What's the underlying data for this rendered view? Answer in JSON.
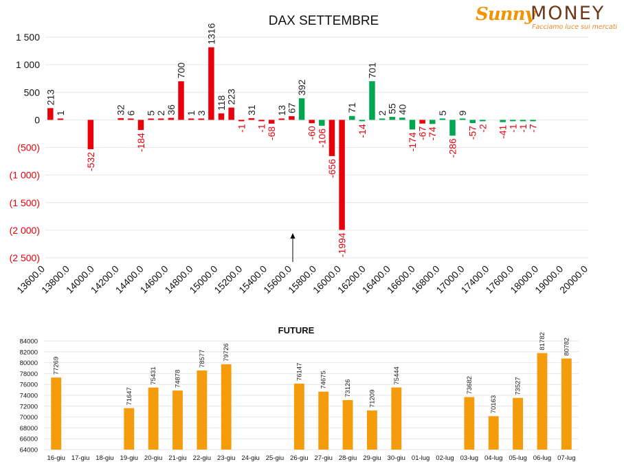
{
  "brand": {
    "logo_name": "Sunny",
    "logo_money": "MONEY",
    "tagline": "Facciamo luce sui mercati"
  },
  "chart_data": [
    {
      "type": "bar",
      "title": "DAX SETTEMBRE",
      "xlabel": "",
      "ylabel": "",
      "ylim": [
        -2500,
        1500
      ],
      "yticks": [
        1500,
        1000,
        500,
        0,
        -500,
        -1000,
        -1500,
        -2000,
        -2500
      ],
      "ytick_labels": [
        "1 500",
        "1 000",
        "500",
        "0",
        "(500)",
        "(1 000)",
        "(1 500)",
        "(2 000)",
        "(2 500)"
      ],
      "xtick_labels": [
        "13600.0",
        "13800.0",
        "14000.0",
        "14200.0",
        "14400.0",
        "14600.0",
        "14800.0",
        "15000.0",
        "15200.0",
        "15400.0",
        "15600.0",
        "15800.0",
        "16000.0",
        "16200.0",
        "16400.0",
        "16600.0",
        "16800.0",
        "17000.0",
        "17400.0",
        "17600.0",
        "18000.0",
        "19000.0",
        "20000.0"
      ],
      "grid": true,
      "bars": [
        {
          "value": 213,
          "color": "#e8000b"
        },
        {
          "value": 1,
          "color": "#e8000b"
        },
        {
          "value": null,
          "color": "#e8000b"
        },
        {
          "value": null,
          "color": "#e8000b"
        },
        {
          "value": -532,
          "color": "#e8000b"
        },
        {
          "value": null,
          "color": "#e8000b"
        },
        {
          "value": null,
          "color": "#e8000b"
        },
        {
          "value": 32,
          "color": "#e8000b"
        },
        {
          "value": 6,
          "color": "#e8000b"
        },
        {
          "value": -184,
          "color": "#e8000b"
        },
        {
          "value": 5,
          "color": "#e8000b"
        },
        {
          "value": 2,
          "color": "#e8000b"
        },
        {
          "value": 36,
          "color": "#e8000b"
        },
        {
          "value": 700,
          "color": "#e8000b"
        },
        {
          "value": 1,
          "color": "#e8000b"
        },
        {
          "value": 3,
          "color": "#e8000b"
        },
        {
          "value": 1316,
          "color": "#e8000b"
        },
        {
          "value": 118,
          "color": "#e8000b"
        },
        {
          "value": 223,
          "color": "#e8000b"
        },
        {
          "value": -1,
          "color": "#e8000b"
        },
        {
          "value": 31,
          "color": "#e8000b"
        },
        {
          "value": -1,
          "color": "#e8000b"
        },
        {
          "value": -68,
          "color": "#e8000b"
        },
        {
          "value": 13,
          "color": "#e8000b"
        },
        {
          "value": 67,
          "color": "#e8000b"
        },
        {
          "value": 392,
          "color": "#00a650"
        },
        {
          "value": -60,
          "color": "#e8000b"
        },
        {
          "value": -106,
          "color": "#00a650"
        },
        {
          "value": -656,
          "color": "#e8000b"
        },
        {
          "value": -1994,
          "color": "#e8000b"
        },
        {
          "value": 71,
          "color": "#00a650"
        },
        {
          "value": -14,
          "color": "#00a650"
        },
        {
          "value": 701,
          "color": "#00a650"
        },
        {
          "value": 2,
          "color": "#00a650"
        },
        {
          "value": 55,
          "color": "#00a650"
        },
        {
          "value": 40,
          "color": "#00a650"
        },
        {
          "value": -174,
          "color": "#00a650"
        },
        {
          "value": -67,
          "color": "#e8000b"
        },
        {
          "value": -74,
          "color": "#00a650"
        },
        {
          "value": 5,
          "color": "#00a650"
        },
        {
          "value": -286,
          "color": "#00a650"
        },
        {
          "value": 9,
          "color": "#00a650"
        },
        {
          "value": -57,
          "color": "#00a650"
        },
        {
          "value": -2,
          "color": "#00a650"
        },
        {
          "value": null,
          "color": "#00a650"
        },
        {
          "value": -41,
          "color": "#00a650"
        },
        {
          "value": -1,
          "color": "#00a650"
        },
        {
          "value": -1,
          "color": "#00a650"
        },
        {
          "value": -7,
          "color": "#00a650"
        },
        {
          "value": null,
          "color": "#00a650"
        },
        {
          "value": null,
          "color": "#00a650"
        },
        {
          "value": null,
          "color": "#00a650"
        },
        {
          "value": null,
          "color": "#00a650"
        },
        {
          "value": null,
          "color": "#00a650"
        }
      ],
      "positive_label_color": "#222222",
      "negative_label_color": "#e8000b",
      "marker": "arrow pointing up at 15600.0"
    },
    {
      "type": "bar",
      "title": "FUTURE",
      "xlabel": "",
      "ylabel": "",
      "ylim": [
        64000,
        84000
      ],
      "yticks": [
        84000,
        82000,
        80000,
        78000,
        76000,
        74000,
        72000,
        70000,
        68000,
        66000,
        64000
      ],
      "categories": [
        "16-giu",
        "17-giu",
        "18-giu",
        "19-giu",
        "20-giu",
        "21-giu",
        "22-giu",
        "23-giu",
        "24-giu",
        "25-giu",
        "26-giu",
        "27-giu",
        "28-giu",
        "29-giu",
        "30-giu",
        "01-lug",
        "02-lug",
        "03-lug",
        "04-lug",
        "05-lug",
        "06-lug",
        "07-lug"
      ],
      "values": [
        77269,
        null,
        null,
        71647,
        75431,
        74878,
        78577,
        79726,
        null,
        null,
        76147,
        74675,
        73126,
        71209,
        75444,
        null,
        null,
        73682,
        70163,
        73527,
        81782,
        80782
      ],
      "color": "#f59c0c",
      "grid": true
    }
  ]
}
